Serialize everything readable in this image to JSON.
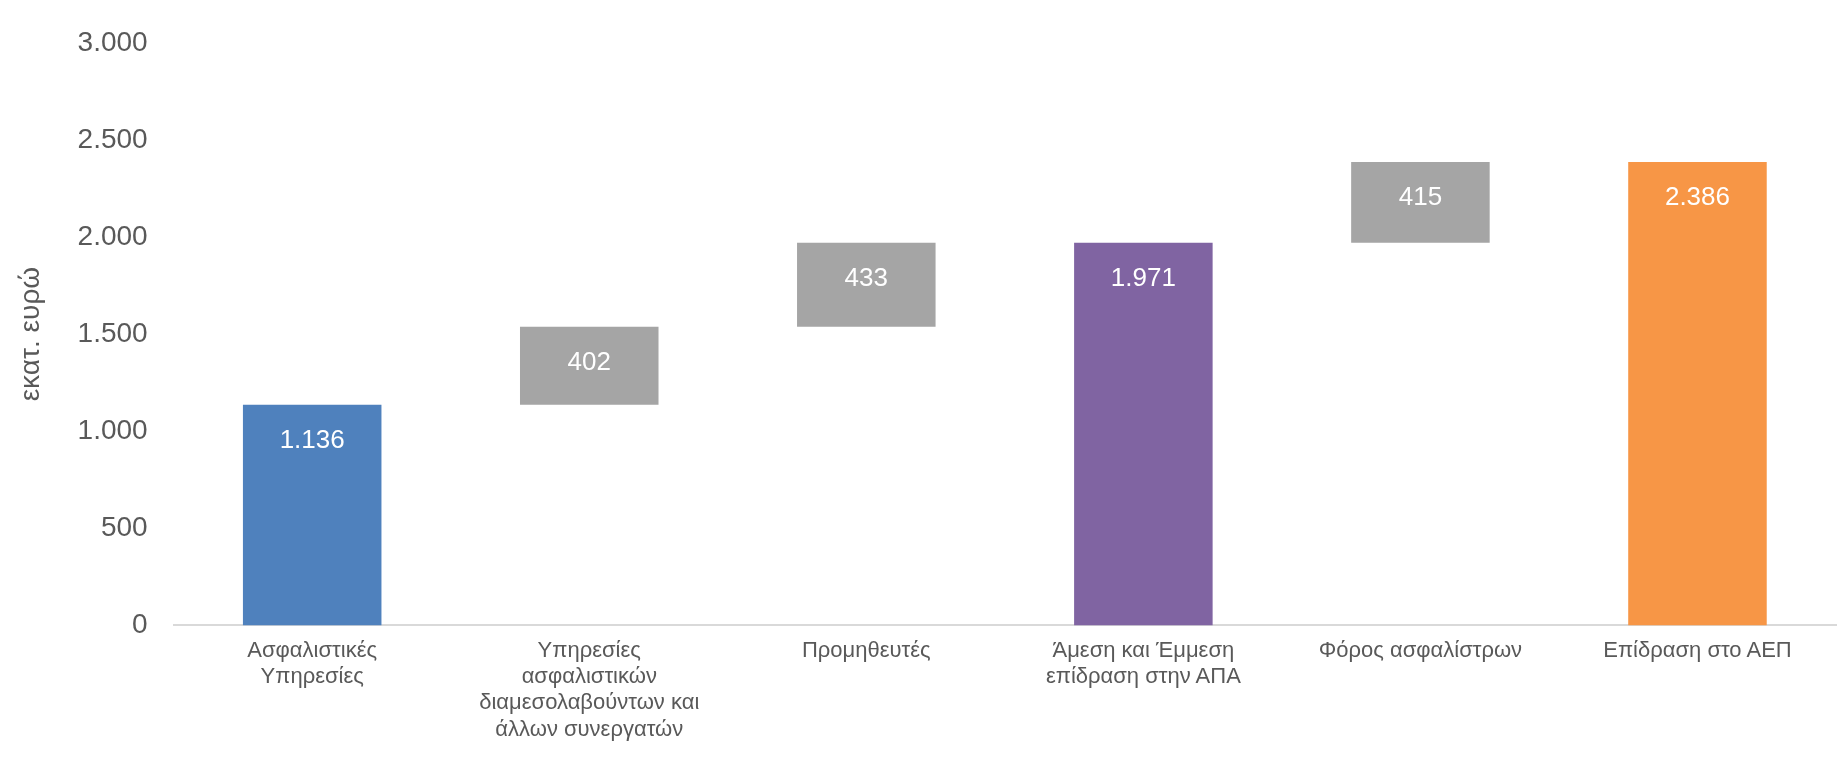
{
  "chart_data": {
    "type": "bar",
    "ylabel": "εκατ. ευρώ",
    "categories": [
      "Ασφαλιστικές Υπηρεσίες",
      "Υπηρεσίες ασφαλιστικών διαμεσολαβούντων και άλλων συνεργατών",
      "Προμηθευτές",
      "Άμεση και Έμμεση επίδραση στην ΑΠΑ",
      "Φόρος ασφαλίστρων",
      "Επίδραση στο ΑΕΠ"
    ],
    "values": [
      1136,
      402,
      433,
      1971,
      415,
      2386
    ],
    "base": [
      0,
      1136,
      1538,
      0,
      1971,
      0
    ],
    "colors": [
      "#4f81bd",
      "#a5a5a5",
      "#a5a5a5",
      "#8064a2",
      "#a5a5a5",
      "#f79646"
    ],
    "value_labels": [
      "1.136",
      "402",
      "433",
      "1.971",
      "415",
      "2.386"
    ],
    "ylim": [
      0,
      3000
    ],
    "yticks": [
      {
        "value": 0,
        "label": "0"
      },
      {
        "value": 500,
        "label": "500"
      },
      {
        "value": 1000,
        "label": "1.000"
      },
      {
        "value": 1500,
        "label": "1.500"
      },
      {
        "value": 2000,
        "label": "2.000"
      },
      {
        "value": 2500,
        "label": "2.500"
      },
      {
        "value": 3000,
        "label": "3.000"
      }
    ],
    "grid": false,
    "legend": false
  }
}
